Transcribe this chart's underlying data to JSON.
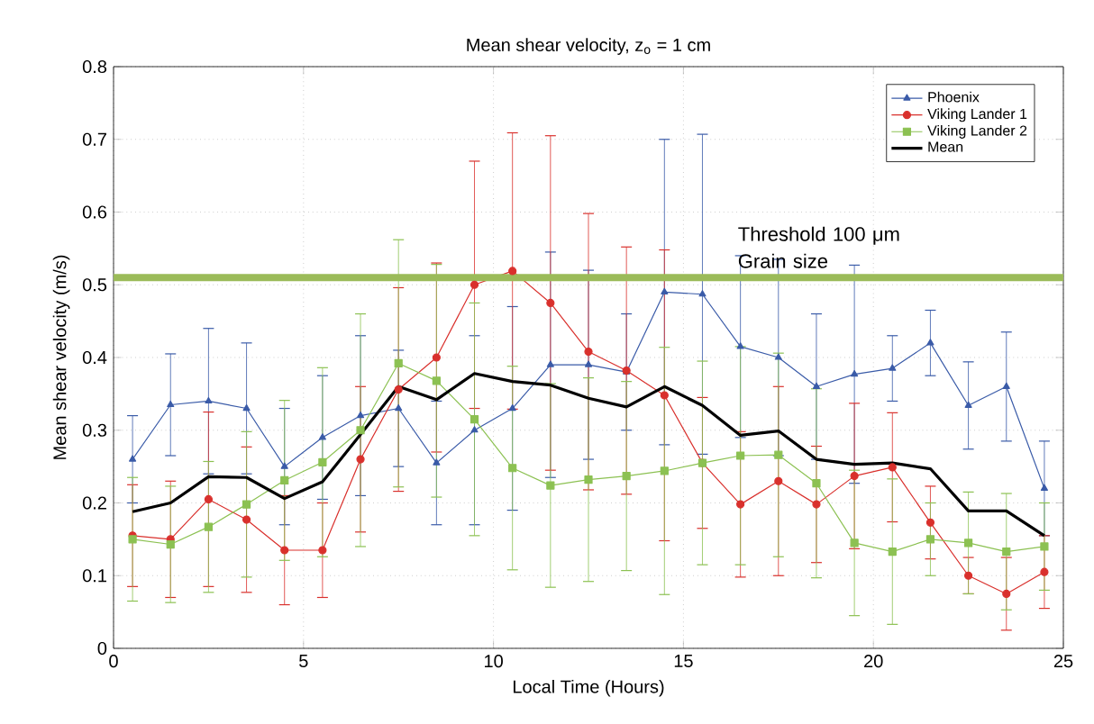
{
  "chart_data": {
    "type": "line",
    "title": "Mean shear velocity, z$_{o}$ = 1 cm",
    "xlabel": "Local Time (Hours)",
    "ylabel": "Mean shear velocity (m/s)",
    "x": [
      0.5,
      1.5,
      2.5,
      3.5,
      4.5,
      5.5,
      6.5,
      7.5,
      8.5,
      9.5,
      10.5,
      11.5,
      12.5,
      13.5,
      14.5,
      15.5,
      16.5,
      17.5,
      18.5,
      19.5,
      20.5,
      21.5,
      22.5,
      23.5,
      24.5
    ],
    "series": [
      {
        "name": "Phoenix",
        "color": "#3a5ba8",
        "marker": "triangle",
        "values": [
          0.26,
          0.335,
          0.34,
          0.33,
          0.25,
          0.29,
          0.32,
          0.33,
          0.255,
          0.3,
          0.33,
          0.39,
          0.39,
          0.38,
          0.49,
          0.487,
          0.415,
          0.4,
          0.36,
          0.377,
          0.385,
          0.42,
          0.334,
          0.36,
          0.22
        ],
        "errors": [
          0.06,
          0.07,
          0.1,
          0.09,
          0.08,
          0.085,
          0.11,
          0.08,
          0.085,
          0.13,
          0.14,
          0.155,
          0.13,
          0.08,
          0.21,
          0.22,
          0.125,
          0.135,
          0.1,
          0.15,
          0.045,
          0.045,
          0.06,
          0.075,
          0.065
        ]
      },
      {
        "name": "Viking Lander 1",
        "color": "#d9302c",
        "marker": "circle",
        "values": [
          0.155,
          0.15,
          0.205,
          0.177,
          0.135,
          0.135,
          0.26,
          0.356,
          0.4,
          0.5,
          0.519,
          0.475,
          0.408,
          0.382,
          0.348,
          0.255,
          0.198,
          0.23,
          0.198,
          0.237,
          0.249,
          0.173,
          0.1,
          0.075,
          0.105
        ],
        "errors": [
          0.07,
          0.08,
          0.12,
          0.1,
          0.075,
          0.065,
          0.1,
          0.14,
          0.13,
          0.17,
          0.19,
          0.23,
          0.19,
          0.17,
          0.2,
          0.09,
          0.1,
          0.13,
          0.08,
          0.1,
          0.075,
          0.05,
          0.025,
          0.05,
          0.05
        ]
      },
      {
        "name": "Viking Lander 2",
        "color": "#8cc152",
        "marker": "square",
        "values": [
          0.15,
          0.143,
          0.167,
          0.198,
          0.231,
          0.256,
          0.3,
          0.392,
          0.368,
          0.315,
          0.248,
          0.224,
          0.232,
          0.237,
          0.244,
          0.255,
          0.265,
          0.266,
          0.227,
          0.145,
          0.133,
          0.15,
          0.145,
          0.133,
          0.14
        ],
        "errors": [
          0.085,
          0.08,
          0.09,
          0.1,
          0.11,
          0.13,
          0.16,
          0.17,
          0.16,
          0.16,
          0.14,
          0.14,
          0.14,
          0.13,
          0.17,
          0.14,
          0.15,
          0.14,
          0.13,
          0.1,
          0.1,
          0.05,
          0.07,
          0.08,
          0.06
        ]
      },
      {
        "name": "Mean",
        "color": "#000000",
        "marker": "none",
        "values": [
          0.188,
          0.2,
          0.236,
          0.235,
          0.206,
          0.229,
          0.294,
          0.36,
          0.342,
          0.378,
          0.367,
          0.362,
          0.344,
          0.332,
          0.36,
          0.334,
          0.293,
          0.299,
          0.26,
          0.253,
          0.255,
          0.247,
          0.189,
          0.189,
          0.155
        ]
      }
    ],
    "xlim": [
      0,
      25
    ],
    "ylim": [
      0,
      0.8
    ],
    "xticks": [
      0,
      5,
      10,
      15,
      20,
      25
    ],
    "yticks": [
      0,
      0.1,
      0.2,
      0.3,
      0.4,
      0.5,
      0.6,
      0.7,
      0.8
    ],
    "ref_lines": [
      {
        "axis": "y",
        "value": 0.51,
        "label": "Threshold 100 μm Grain size",
        "color": "#9bbb59"
      }
    ],
    "grid": true,
    "legend": "top right"
  }
}
